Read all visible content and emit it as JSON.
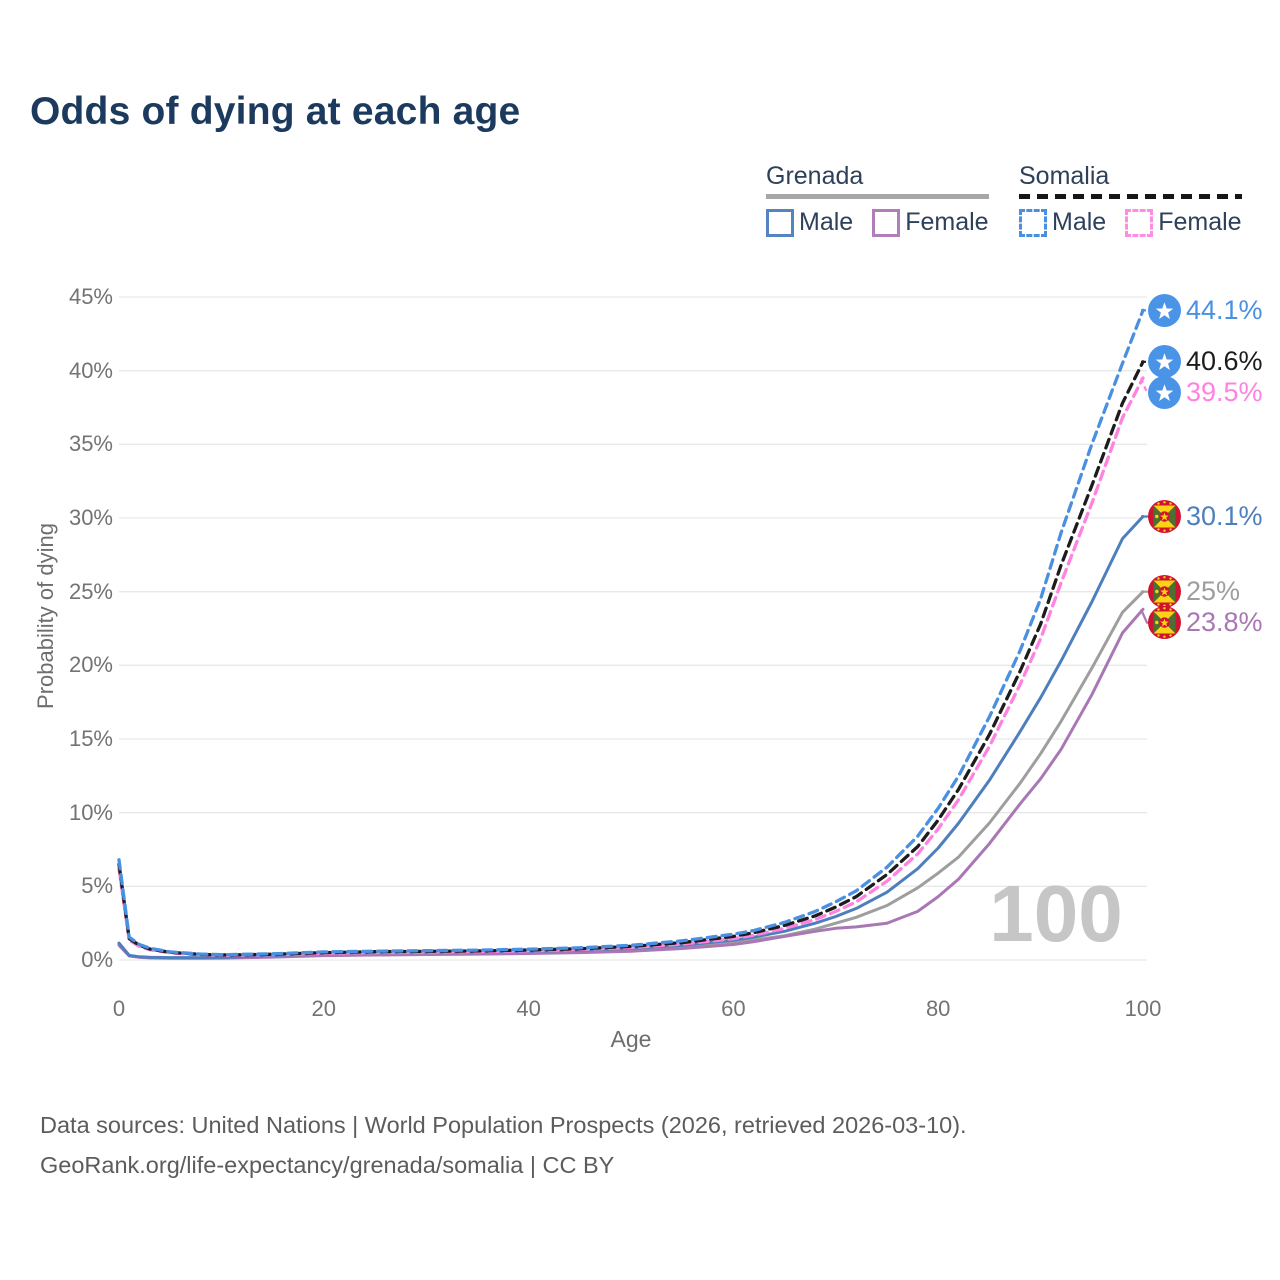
{
  "title": "Odds of dying at each age",
  "watermark": "100",
  "footer": {
    "line1": "Data sources: United Nations | World Population Prospects (2026, retrieved 2026-03-10).",
    "line2": "GeoRank.org/life-expectancy/grenada/somalia | CC BY"
  },
  "legend": {
    "groups": [
      {
        "name": "Grenada",
        "dash": false,
        "underline_color": "#a7a7a7",
        "items": [
          {
            "label": "Male",
            "color": "#5585c0",
            "dash": false
          },
          {
            "label": "Female",
            "color": "#b07eb8",
            "dash": false
          }
        ]
      },
      {
        "name": "Somalia",
        "dash": true,
        "underline_color": "#161616",
        "items": [
          {
            "label": "Male",
            "color": "#4a90e2",
            "dash": true
          },
          {
            "label": "Female",
            "color": "#ff8ce4",
            "dash": true
          }
        ]
      }
    ]
  },
  "chart_data": {
    "type": "line",
    "title": "Odds of dying at each age",
    "xlabel": "Age",
    "ylabel": "Probability of dying",
    "xlim": [
      0,
      100
    ],
    "ylim": [
      0,
      45
    ],
    "grid": "horizontal",
    "legend_position": "top-right",
    "xticks": [
      0,
      20,
      40,
      60,
      80,
      100
    ],
    "xtick_labels": [
      "0",
      "20",
      "40",
      "60",
      "80",
      "100"
    ],
    "yticks": [
      0,
      5,
      10,
      15,
      20,
      25,
      30,
      35,
      40,
      45
    ],
    "ytick_labels": [
      "0%",
      "5%",
      "10%",
      "15%",
      "20%",
      "25%",
      "30%",
      "35%",
      "40%",
      "45%"
    ],
    "x": [
      0,
      1,
      2,
      3,
      5,
      8,
      10,
      15,
      20,
      25,
      30,
      35,
      40,
      45,
      50,
      55,
      60,
      62,
      65,
      68,
      70,
      72,
      75,
      78,
      80,
      82,
      85,
      88,
      90,
      92,
      95,
      98,
      100
    ],
    "series": [
      {
        "name": "Grenada - Both sexes",
        "country": "Grenada",
        "sex": "Both",
        "color": "#9e9e9e",
        "dash": false,
        "flag": "grenada",
        "end_label": "25%",
        "end_value": 25.0,
        "values": [
          1.1,
          0.3,
          0.2,
          0.16,
          0.14,
          0.14,
          0.15,
          0.25,
          0.4,
          0.44,
          0.46,
          0.48,
          0.52,
          0.58,
          0.7,
          0.88,
          1.18,
          1.35,
          1.65,
          2.1,
          2.5,
          2.9,
          3.7,
          4.9,
          5.9,
          7.0,
          9.3,
          12.0,
          14.0,
          16.2,
          19.8,
          23.6,
          25.0
        ]
      },
      {
        "name": "Grenada - Female",
        "country": "Grenada",
        "sex": "Female",
        "color": "#a977b3",
        "dash": false,
        "flag": "grenada",
        "end_label": "23.8%",
        "end_value": 23.8,
        "values": [
          1.0,
          0.27,
          0.18,
          0.14,
          0.12,
          0.12,
          0.13,
          0.2,
          0.3,
          0.34,
          0.37,
          0.4,
          0.44,
          0.5,
          0.6,
          0.78,
          1.05,
          1.25,
          1.6,
          1.95,
          2.15,
          2.25,
          2.5,
          3.3,
          4.3,
          5.5,
          7.9,
          10.6,
          12.3,
          14.3,
          18.0,
          22.2,
          23.8
        ]
      },
      {
        "name": "Grenada - Male",
        "country": "Grenada",
        "sex": "Male",
        "color": "#4d7fbe",
        "dash": false,
        "flag": "grenada",
        "end_label": "30.1%",
        "end_value": 30.1,
        "values": [
          1.15,
          0.32,
          0.22,
          0.18,
          0.16,
          0.16,
          0.17,
          0.3,
          0.48,
          0.54,
          0.55,
          0.56,
          0.6,
          0.67,
          0.8,
          1.0,
          1.35,
          1.55,
          1.95,
          2.5,
          2.95,
          3.5,
          4.6,
          6.2,
          7.6,
          9.3,
          12.2,
          15.5,
          17.8,
          20.3,
          24.3,
          28.6,
          30.1
        ]
      },
      {
        "name": "Somalia - Female",
        "country": "Somalia",
        "sex": "Female",
        "color": "#ff82e0",
        "dash": true,
        "flag": "somalia",
        "end_label": "39.5%",
        "end_value": 39.5,
        "values": [
          6.2,
          1.35,
          0.92,
          0.7,
          0.48,
          0.35,
          0.31,
          0.36,
          0.46,
          0.51,
          0.54,
          0.57,
          0.62,
          0.71,
          0.85,
          1.08,
          1.45,
          1.68,
          2.15,
          2.75,
          3.3,
          3.95,
          5.35,
          7.2,
          8.9,
          10.9,
          14.5,
          18.7,
          21.8,
          25.6,
          31.0,
          36.8,
          39.5
        ]
      },
      {
        "name": "Somalia - Both sexes",
        "country": "Somalia",
        "sex": "Both",
        "color": "#1c1c1c",
        "dash": true,
        "flag": "somalia",
        "end_label": "40.6%",
        "end_value": 40.6,
        "values": [
          6.5,
          1.45,
          1.0,
          0.75,
          0.52,
          0.38,
          0.34,
          0.39,
          0.5,
          0.56,
          0.59,
          0.62,
          0.68,
          0.77,
          0.92,
          1.18,
          1.6,
          1.85,
          2.35,
          3.0,
          3.6,
          4.3,
          5.8,
          7.7,
          9.5,
          11.6,
          15.3,
          19.6,
          22.8,
          26.8,
          32.2,
          37.8,
          40.6
        ]
      },
      {
        "name": "Somalia - Male",
        "country": "Somalia",
        "sex": "Male",
        "color": "#4a90e2",
        "dash": true,
        "flag": "somalia",
        "end_label": "44.1%",
        "end_value": 44.1,
        "values": [
          6.8,
          1.55,
          1.05,
          0.8,
          0.55,
          0.4,
          0.36,
          0.42,
          0.55,
          0.6,
          0.63,
          0.67,
          0.73,
          0.83,
          1.0,
          1.3,
          1.75,
          2.0,
          2.55,
          3.3,
          3.95,
          4.7,
          6.3,
          8.4,
          10.3,
          12.5,
          16.5,
          21.0,
          24.5,
          29.0,
          35.0,
          40.5,
          44.1
        ]
      }
    ]
  }
}
